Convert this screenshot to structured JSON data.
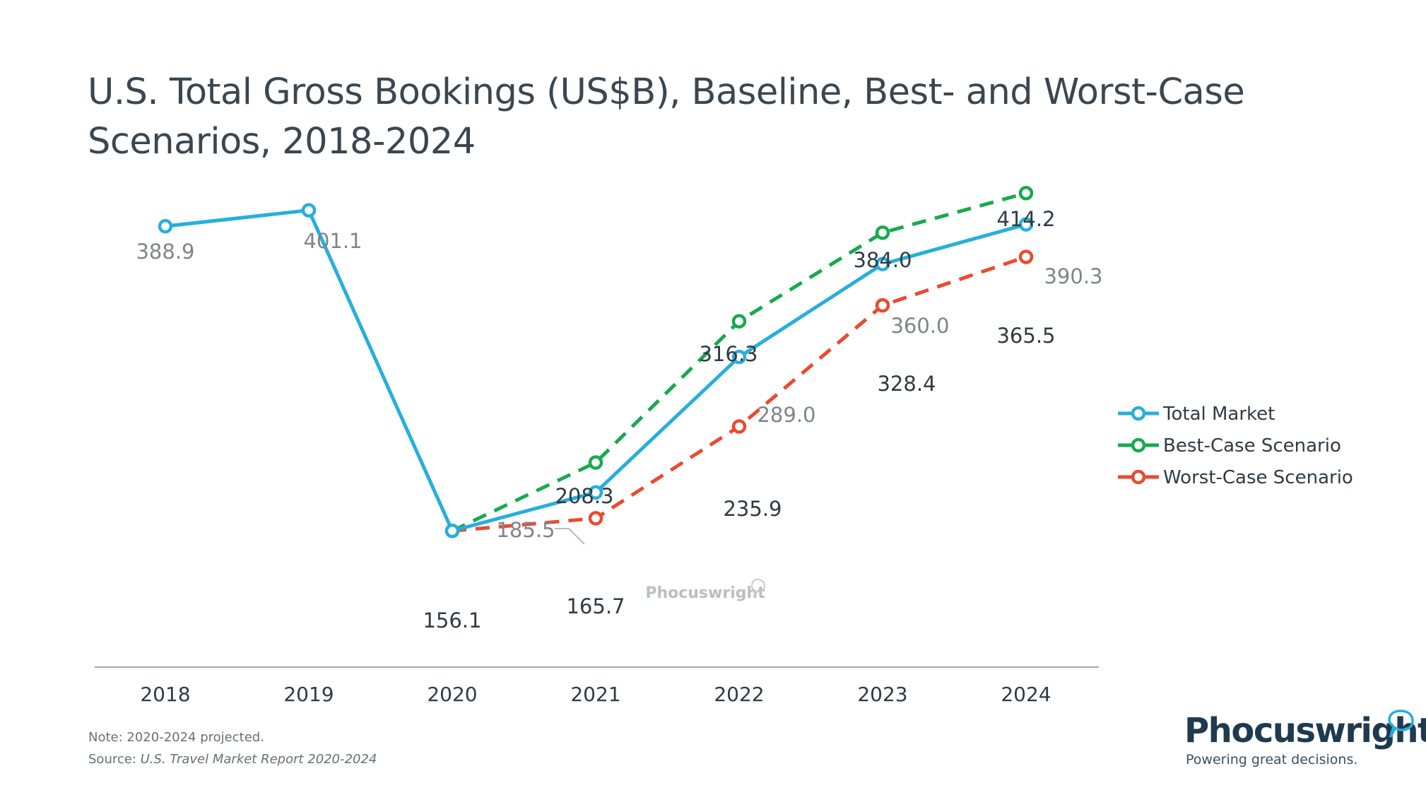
{
  "chart_data": {
    "type": "line",
    "title": "U.S. Total Gross Bookings (US$B), Baseline, Best- and Worst-Case Scenarios, 2018-2024",
    "categories": [
      "2018",
      "2019",
      "2020",
      "2021",
      "2022",
      "2023",
      "2024"
    ],
    "ylim": [
      0,
      430
    ],
    "grid": false,
    "legend_position": "right",
    "series": [
      {
        "name": "Total Market",
        "color": "#28aedb",
        "dashed": false,
        "values": [
          388.9,
          401.1,
          156.1,
          185.5,
          289.0,
          360.0,
          390.3
        ],
        "labels": [
          "388.9",
          "401.1",
          "",
          "185.5",
          "289.0",
          "360.0",
          "390.3"
        ]
      },
      {
        "name": "Best-Case Scenario",
        "color": "#17a94f",
        "dashed": true,
        "values": [
          null,
          null,
          156.1,
          208.3,
          316.3,
          384.0,
          414.2
        ],
        "labels": [
          "",
          "",
          "",
          "208.3",
          "316.3",
          "384.0",
          "414.2"
        ]
      },
      {
        "name": "Worst-Case Scenario",
        "color": "#ea4a2f",
        "dashed": true,
        "values": [
          null,
          null,
          156.1,
          165.7,
          235.9,
          328.4,
          365.5
        ],
        "labels": [
          "",
          "",
          "156.1",
          "165.7",
          "235.9",
          "328.4",
          "365.5"
        ]
      }
    ]
  },
  "watermark": "Phocuswright",
  "footer": {
    "note": "Note: 2020-2024 projected.",
    "source_prefix": "Source: ",
    "source_title": "U.S. Travel Market Report 2020-2024"
  },
  "brand": {
    "name": "Phocuswright",
    "tagline": "Powering great decisions."
  }
}
